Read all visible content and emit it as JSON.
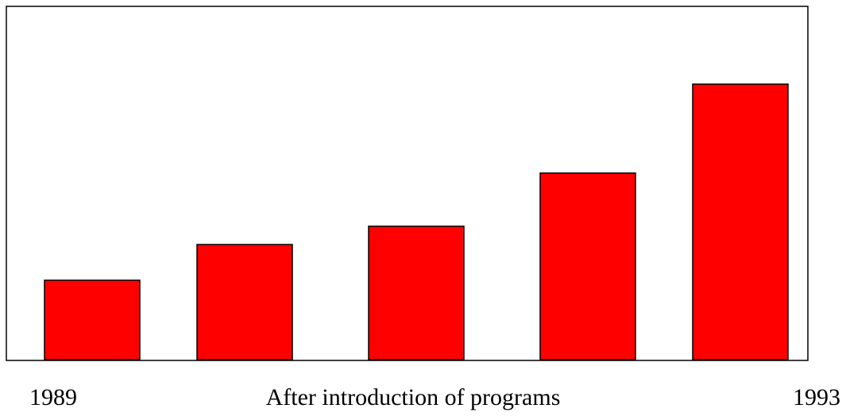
{
  "chart_data": {
    "type": "bar",
    "title": "",
    "xlabel": "After introduction of programs",
    "ylabel": "",
    "categories": [
      "1989",
      "",
      "",
      "",
      "1993"
    ],
    "values": [
      1.0,
      1.45,
      1.68,
      2.35,
      3.47
    ],
    "ylim": [
      0,
      4.0
    ],
    "grid": false,
    "legend": "none",
    "colors": {
      "bar_fill": "#ff0000",
      "bar_stroke": "#000000",
      "frame": "#000000",
      "text": "#000000"
    },
    "tick_labels": {
      "left": "1989",
      "right": "1993"
    }
  }
}
